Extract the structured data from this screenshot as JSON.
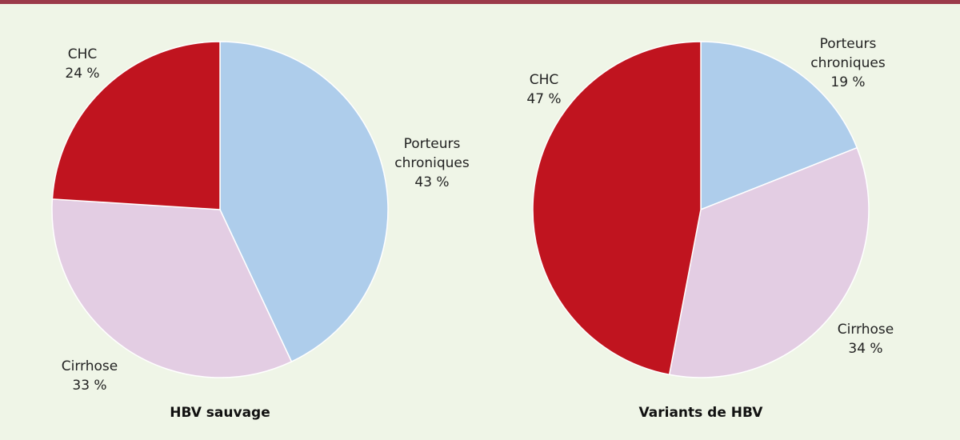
{
  "chart_data": [
    {
      "type": "pie",
      "title": "HBV sauvage",
      "categories": [
        "Porteurs chroniques",
        "Cirrhose",
        "CHC"
      ],
      "values": [
        43,
        33,
        24
      ],
      "value_labels": [
        "43 %",
        "33 %",
        "24 %"
      ],
      "colors": [
        "#aecdeb",
        "#e3cde3",
        "#c0141f"
      ]
    },
    {
      "type": "pie",
      "title": "Variants de HBV",
      "categories": [
        "Porteurs chroniques",
        "Cirrhose",
        "CHC"
      ],
      "values": [
        19,
        34,
        47
      ],
      "value_labels": [
        "19 %",
        "34 %",
        "47 %"
      ],
      "colors": [
        "#aecdeb",
        "#e3cde3",
        "#c0141f"
      ]
    }
  ]
}
